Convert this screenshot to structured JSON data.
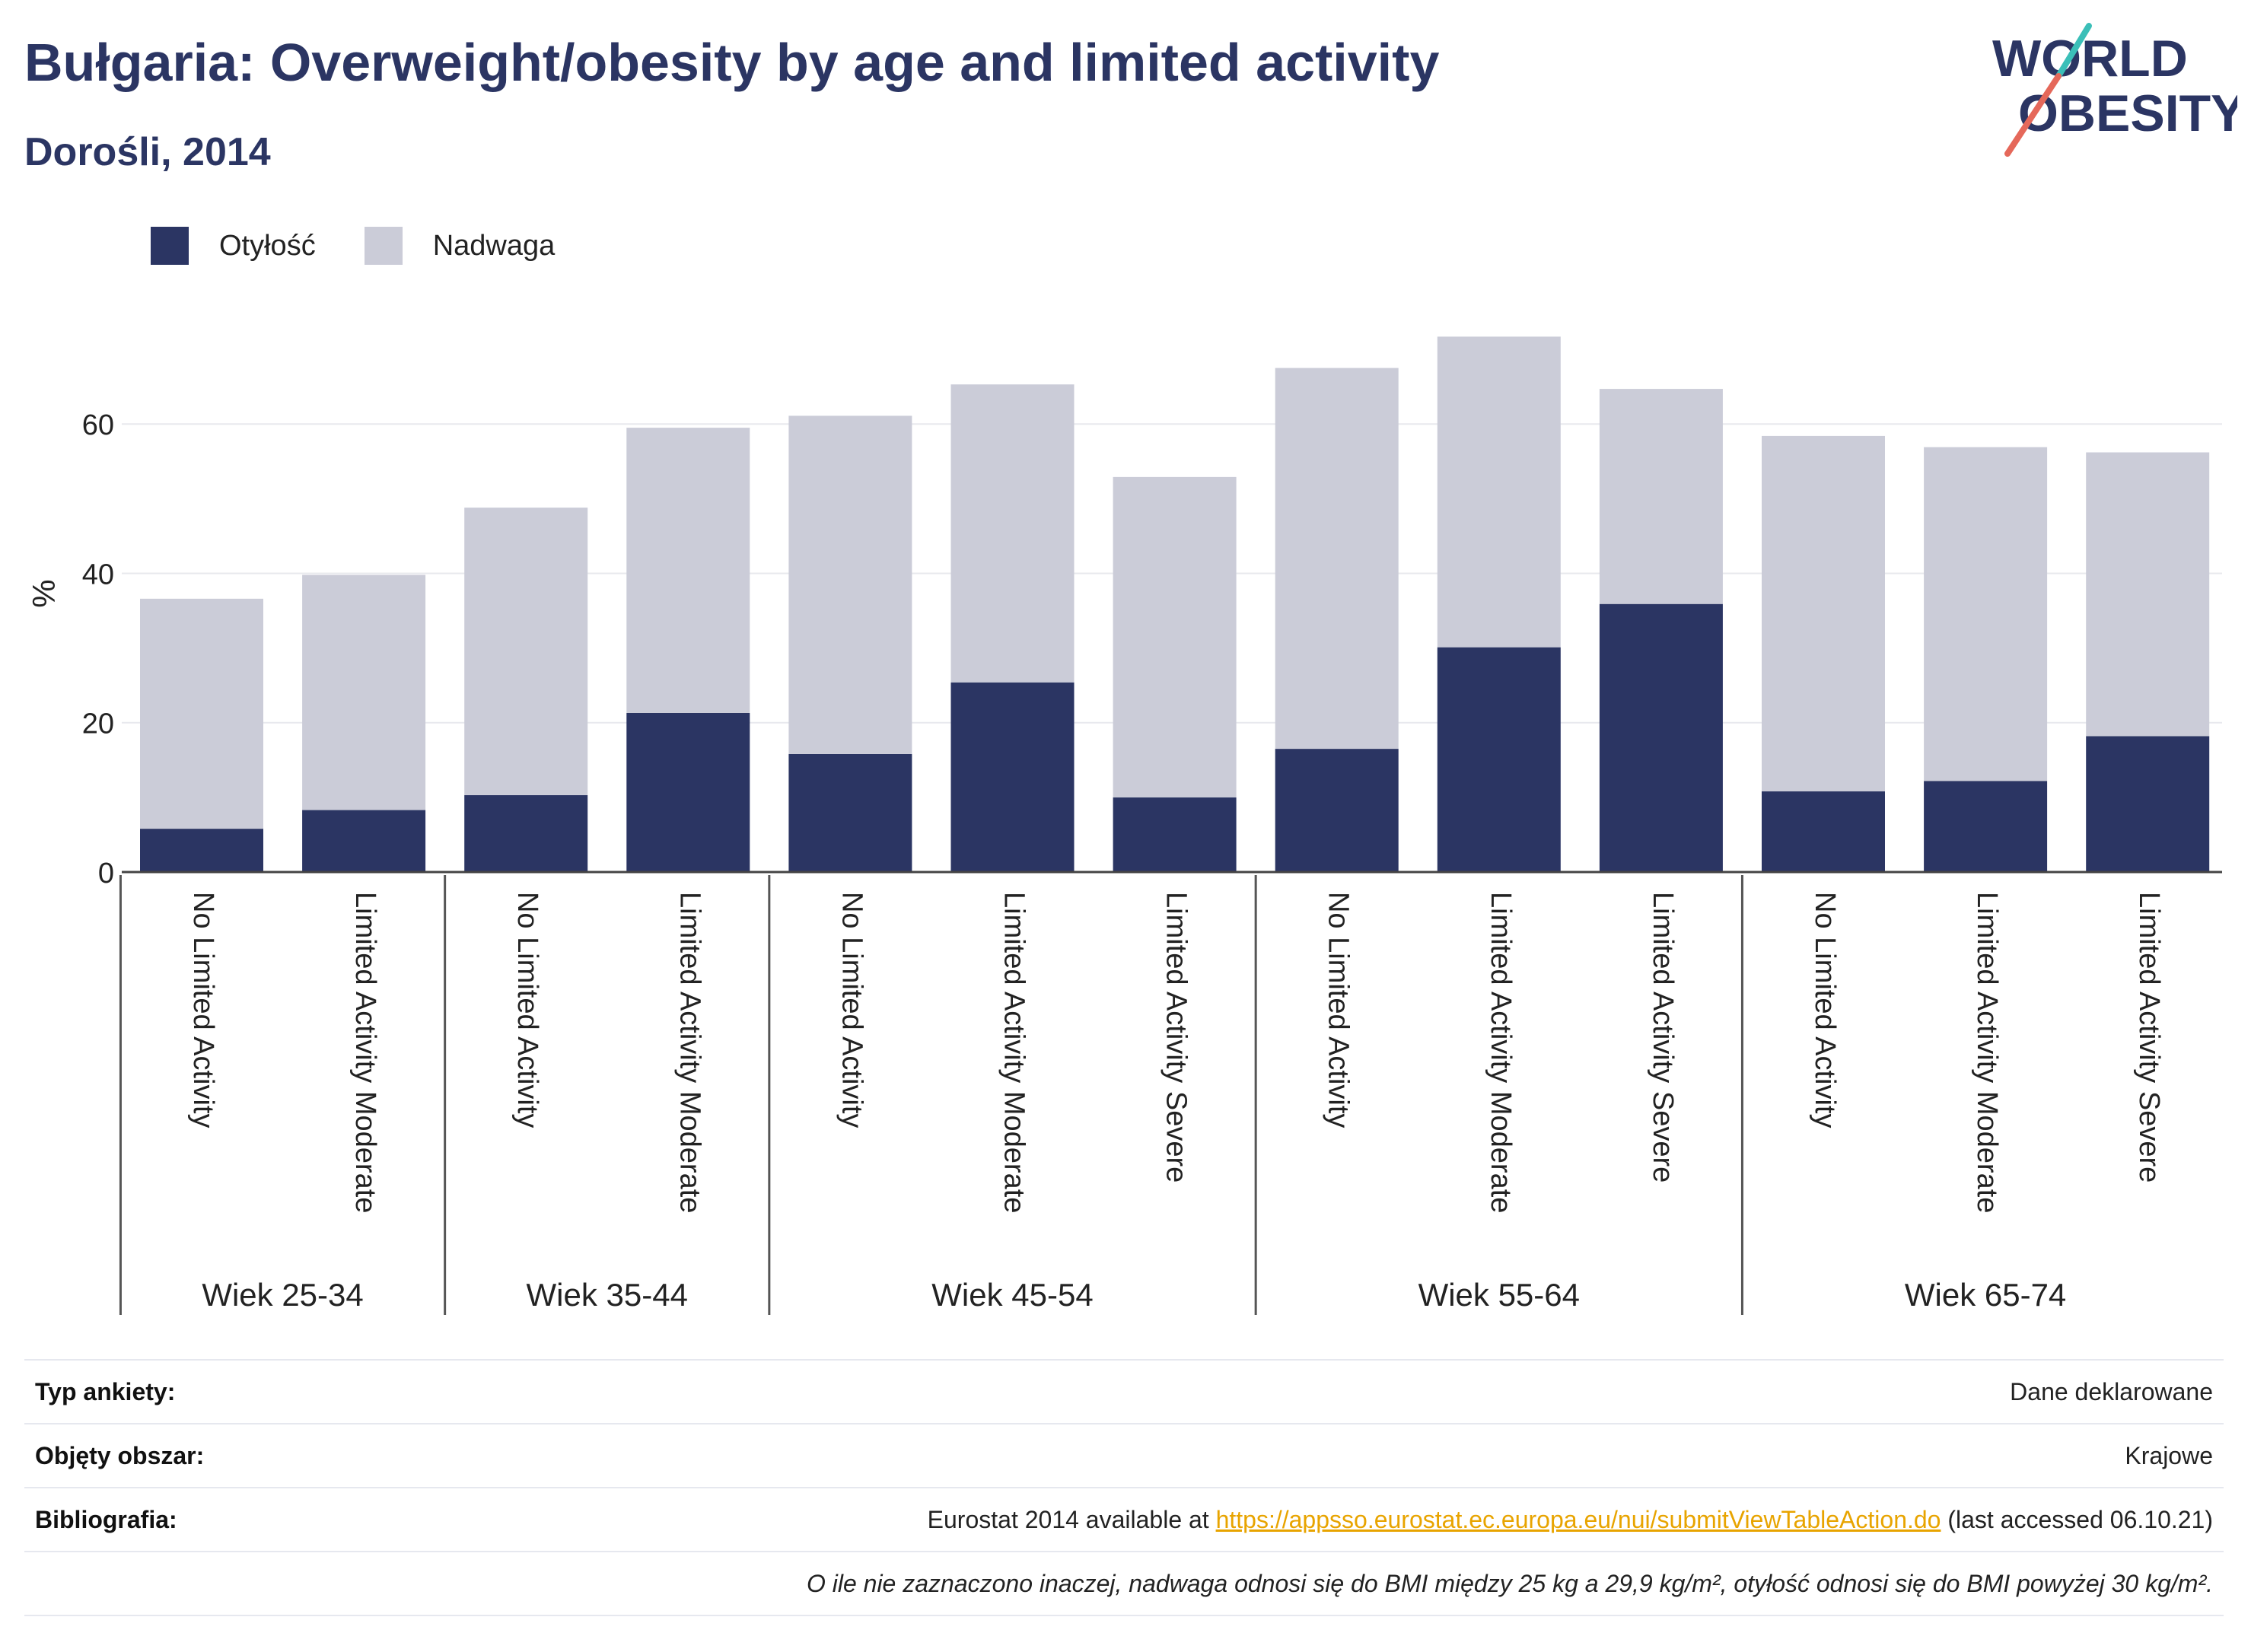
{
  "header": {
    "title": "Bułgaria: Overweight/obesity by age and limited activity",
    "subtitle": "Dorośli, 2014"
  },
  "logo": {
    "line1": "WORLD",
    "line2": "OBESITY"
  },
  "legend": [
    {
      "label": "Otyłość",
      "color": "#2b3563"
    },
    {
      "label": "Nadwaga",
      "color": "#cbccd8"
    }
  ],
  "chart_data": {
    "type": "bar",
    "stacked": true,
    "ylabel": "%",
    "ylim": [
      0,
      75
    ],
    "yticks": [
      0,
      20,
      40,
      60
    ],
    "grid": true,
    "legend_position": "top-left",
    "groups": [
      {
        "label": "Wiek 25-34",
        "categories": [
          "No Limited Activity",
          "Limited Activity Moderate"
        ]
      },
      {
        "label": "Wiek 35-44",
        "categories": [
          "No Limited Activity",
          "Limited Activity Moderate"
        ]
      },
      {
        "label": "Wiek 45-54",
        "categories": [
          "No Limited Activity",
          "Limited Activity Moderate",
          "Limited Activity Severe"
        ]
      },
      {
        "label": "Wiek 55-64",
        "categories": [
          "No Limited Activity",
          "Limited Activity Moderate",
          "Limited Activity Severe"
        ]
      },
      {
        "label": "Wiek 65-74",
        "categories": [
          "No Limited Activity",
          "Limited Activity Moderate",
          "Limited Activity Severe"
        ]
      }
    ],
    "series": [
      {
        "name": "Otyłość",
        "color": "#2b3563",
        "values": [
          5.8,
          8.3,
          10.3,
          21.3,
          15.8,
          25.4,
          10.0,
          16.5,
          30.1,
          35.9,
          10.8,
          12.2,
          18.2
        ]
      },
      {
        "name": "Nadwaga",
        "color": "#cbccd8",
        "values": [
          30.8,
          31.5,
          38.5,
          38.2,
          45.3,
          39.9,
          42.9,
          51.0,
          41.6,
          28.8,
          47.6,
          44.7,
          38.0
        ]
      }
    ]
  },
  "meta": {
    "rows": [
      {
        "key": "Typ ankiety:",
        "value": "Dane deklarowane"
      },
      {
        "key": "Objęty obszar:",
        "value": "Krajowe"
      }
    ],
    "biblio": {
      "key": "Bibliografia:",
      "prefix": "Eurostat 2014 available at ",
      "link": "https://appsso.eurostat.ec.europa.eu/nui/submitViewTableAction.do",
      "suffix": " (last accessed 06.10.21)"
    },
    "note": "O ile nie zaznaczono inaczej, nadwaga odnosi się do BMI między 25 kg a 29,9 kg/m², otyłość odnosi się do BMI powyżej 30 kg/m²."
  }
}
